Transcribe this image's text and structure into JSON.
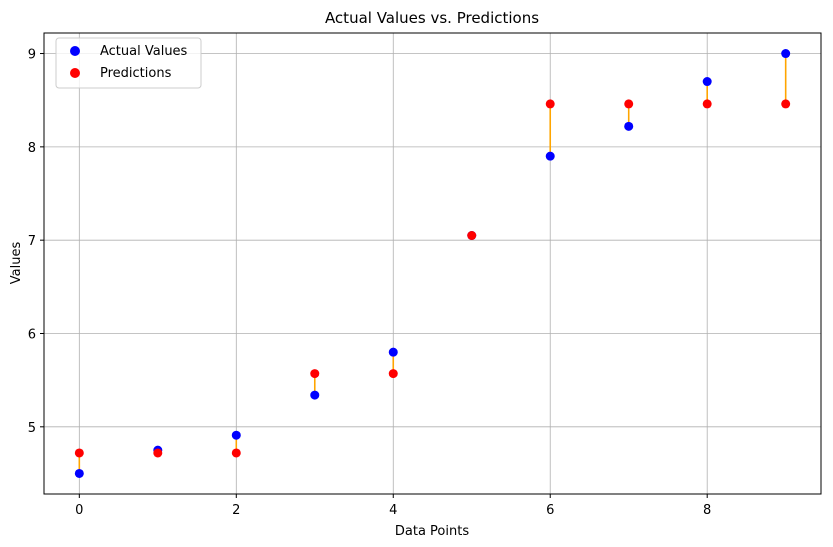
{
  "chart_data": {
    "type": "scatter",
    "title": "Actual Values vs. Predictions",
    "xlabel": "Data Points",
    "ylabel": "Values",
    "xlim": [
      -0.45,
      9.45
    ],
    "ylim": [
      4.28,
      9.22
    ],
    "xticks": [
      0,
      2,
      4,
      6,
      8
    ],
    "yticks": [
      5,
      6,
      7,
      8,
      9
    ],
    "grid": true,
    "legend_position": "upper-left",
    "x": [
      0,
      1,
      2,
      3,
      4,
      5,
      6,
      7,
      8,
      9
    ],
    "series": [
      {
        "name": "Actual Values",
        "color": "#0000ff",
        "values": [
          4.5,
          4.75,
          4.91,
          5.34,
          5.8,
          7.05,
          7.9,
          8.22,
          8.7,
          9.0
        ]
      },
      {
        "name": "Predictions",
        "color": "#ff0000",
        "values": [
          4.72,
          4.72,
          4.72,
          5.57,
          5.57,
          7.05,
          8.46,
          8.46,
          8.46,
          8.46
        ]
      }
    ],
    "residual_color": "#ffa500"
  }
}
